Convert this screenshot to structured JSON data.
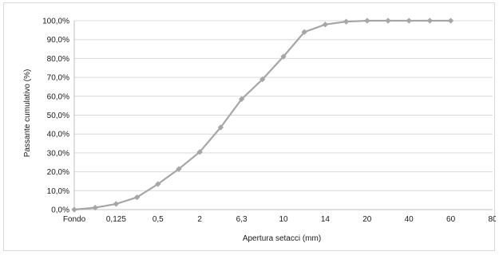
{
  "chart_data": {
    "type": "line",
    "title": "",
    "xlabel": "Apertura setacci (mm)",
    "ylabel": "Passante cumulativo (%)",
    "x_ticks": [
      "Fondo",
      "",
      "0,125",
      "",
      "0,5",
      "",
      "2",
      "",
      "6,3",
      "",
      "10",
      "",
      "14",
      "",
      "20",
      "",
      "40",
      "",
      "60",
      "",
      "80"
    ],
    "y_ticks": [
      "0,0%",
      "10,0%",
      "20,0%",
      "30,0%",
      "40,0%",
      "50,0%",
      "60,0%",
      "70,0%",
      "80,0%",
      "90,0%",
      "100,0%"
    ],
    "ylim": [
      0,
      100
    ],
    "grid": true,
    "legend": "none",
    "series": [
      {
        "values": [
          0,
          1,
          3,
          6.5,
          13.5,
          21.5,
          30.5,
          43.5,
          58.5,
          69,
          81,
          94,
          98,
          99.5,
          100,
          100,
          100,
          100,
          100
        ]
      }
    ],
    "colors": {
      "line": "#a6a6a6",
      "marker": "#a6a6a6",
      "grid": "#d9d9d9",
      "axis": "#bfbfbf"
    }
  }
}
